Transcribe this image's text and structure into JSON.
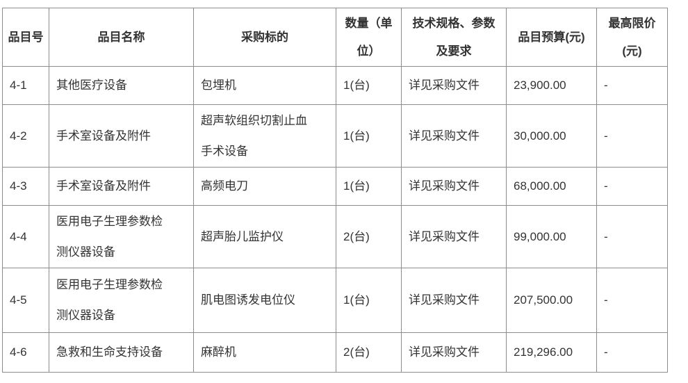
{
  "colors": {
    "background": "#ffffff",
    "table_border": "#8c8c8c",
    "text": "#333333"
  },
  "table": {
    "columns": [
      {
        "label": "品目号"
      },
      {
        "label": "品目名称"
      },
      {
        "label": "采购标的"
      },
      {
        "label": "数量（单\n位）"
      },
      {
        "label": "技术规格、参数\n及要求"
      },
      {
        "label": "品目预算(元)"
      },
      {
        "label": "最高限价\n(元)"
      }
    ],
    "rows": [
      [
        "4-1",
        "其他医疗设备",
        "包埋机",
        "1(台)",
        "详见采购文件",
        "23,900.00",
        "-"
      ],
      [
        "4-2",
        "手术室设备及附件",
        "超声软组织切割止血\n手术设备",
        "1(台)",
        "详见采购文件",
        "30,000.00",
        "-"
      ],
      [
        "4-3",
        "手术室设备及附件",
        "高频电刀",
        "1(台)",
        "详见采购文件",
        "68,000.00",
        "-"
      ],
      [
        "4-4",
        "医用电子生理参数检\n测仪器设备",
        "超声胎儿监护仪",
        "2(台)",
        "详见采购文件",
        "99,000.00",
        "-"
      ],
      [
        "4-5",
        "医用电子生理参数检\n测仪器设备",
        "肌电图诱发电位仪",
        "1(台)",
        "详见采购文件",
        "207,500.00",
        "-"
      ],
      [
        "4-6",
        "急救和生命支持设备",
        "麻醉机",
        "2(台)",
        "详见采购文件",
        "219,296.00",
        "-"
      ]
    ]
  }
}
